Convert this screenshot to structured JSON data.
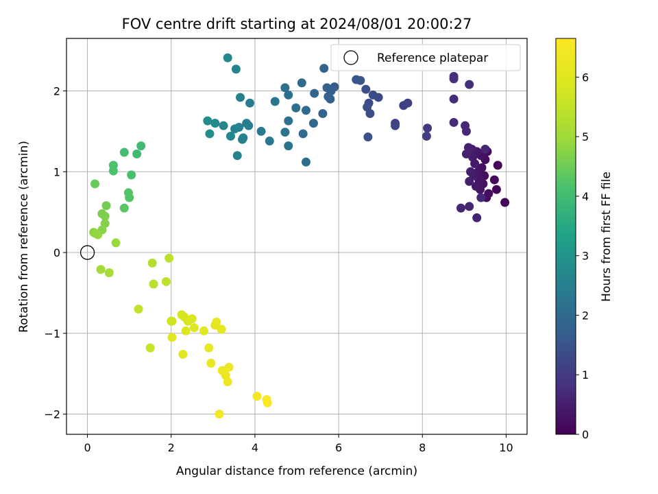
{
  "chart_data": {
    "type": "scatter",
    "title": "FOV centre drift starting at 2024/08/01 20:00:27",
    "xlabel": "Angular distance from reference (arcmin)",
    "ylabel": "Rotation from reference (arcmin)",
    "xlim": [
      -0.5,
      10.5
    ],
    "ylim": [
      -2.25,
      2.65
    ],
    "xticks": [
      0,
      2,
      4,
      6,
      8,
      10
    ],
    "yticks": [
      -2,
      -1,
      0,
      1,
      2
    ],
    "grid": true,
    "legend_position": "top-right",
    "reference": {
      "label": "Reference platepar",
      "x": 0,
      "y": 0,
      "marker": "open-circle"
    },
    "colorbar": {
      "label": "Hours from first FF file",
      "range": [
        0,
        6.65
      ],
      "ticks": [
        0,
        1,
        2,
        3,
        4,
        5,
        6
      ],
      "colormap": "viridis"
    },
    "points": [
      {
        "x": 9.97,
        "y": 0.62,
        "c": 0.05
      },
      {
        "x": 9.8,
        "y": 1.08,
        "c": 0.1
      },
      {
        "x": 9.77,
        "y": 0.78,
        "c": 0.12
      },
      {
        "x": 9.72,
        "y": 0.9,
        "c": 0.14
      },
      {
        "x": 9.55,
        "y": 1.25,
        "c": 0.16
      },
      {
        "x": 9.58,
        "y": 0.73,
        "c": 0.18
      },
      {
        "x": 9.53,
        "y": 0.68,
        "c": 0.2
      },
      {
        "x": 9.5,
        "y": 1.15,
        "c": 0.22
      },
      {
        "x": 9.48,
        "y": 0.95,
        "c": 0.24
      },
      {
        "x": 9.45,
        "y": 0.85,
        "c": 0.26
      },
      {
        "x": 9.42,
        "y": 1.05,
        "c": 0.28
      },
      {
        "x": 9.4,
        "y": 1.2,
        "c": 0.3
      },
      {
        "x": 9.38,
        "y": 0.78,
        "c": 0.32
      },
      {
        "x": 9.35,
        "y": 0.9,
        "c": 0.34
      },
      {
        "x": 9.33,
        "y": 1.0,
        "c": 0.36
      },
      {
        "x": 9.3,
        "y": 1.25,
        "c": 0.38
      },
      {
        "x": 9.28,
        "y": 0.82,
        "c": 0.4
      },
      {
        "x": 9.25,
        "y": 1.1,
        "c": 0.42
      },
      {
        "x": 9.22,
        "y": 0.95,
        "c": 0.44
      },
      {
        "x": 9.2,
        "y": 1.18,
        "c": 0.46
      },
      {
        "x": 9.18,
        "y": 1.28,
        "c": 0.48
      },
      {
        "x": 9.15,
        "y": 1.0,
        "c": 0.5
      },
      {
        "x": 9.12,
        "y": 0.88,
        "c": 0.52
      },
      {
        "x": 9.1,
        "y": 1.3,
        "c": 0.54
      },
      {
        "x": 9.05,
        "y": 1.22,
        "c": 0.56
      },
      {
        "x": 9.3,
        "y": 0.43,
        "c": 0.58
      },
      {
        "x": 9.12,
        "y": 0.57,
        "c": 0.6
      },
      {
        "x": 8.92,
        "y": 0.55,
        "c": 0.62
      },
      {
        "x": 9.4,
        "y": 0.68,
        "c": 0.64
      },
      {
        "x": 9.5,
        "y": 1.28,
        "c": 0.66
      },
      {
        "x": 9.05,
        "y": 1.5,
        "c": 0.68
      },
      {
        "x": 9.02,
        "y": 1.57,
        "c": 0.7
      },
      {
        "x": 8.75,
        "y": 1.61,
        "c": 0.72
      },
      {
        "x": 8.75,
        "y": 1.9,
        "c": 0.74
      },
      {
        "x": 9.12,
        "y": 2.08,
        "c": 0.76
      },
      {
        "x": 8.75,
        "y": 2.15,
        "c": 0.78
      },
      {
        "x": 8.75,
        "y": 2.18,
        "c": 0.8
      },
      {
        "x": 8.12,
        "y": 1.54,
        "c": 1.0
      },
      {
        "x": 8.1,
        "y": 1.44,
        "c": 1.02
      },
      {
        "x": 7.65,
        "y": 1.85,
        "c": 1.1
      },
      {
        "x": 7.55,
        "y": 1.82,
        "c": 1.12
      },
      {
        "x": 7.35,
        "y": 1.6,
        "c": 1.16
      },
      {
        "x": 7.35,
        "y": 1.57,
        "c": 1.18
      },
      {
        "x": 6.95,
        "y": 1.92,
        "c": 1.28
      },
      {
        "x": 6.82,
        "y": 1.95,
        "c": 1.32
      },
      {
        "x": 6.72,
        "y": 1.85,
        "c": 1.35
      },
      {
        "x": 6.75,
        "y": 1.72,
        "c": 1.38
      },
      {
        "x": 6.68,
        "y": 1.8,
        "c": 1.4
      },
      {
        "x": 6.65,
        "y": 2.02,
        "c": 1.42
      },
      {
        "x": 6.7,
        "y": 1.43,
        "c": 1.45
      },
      {
        "x": 6.52,
        "y": 2.13,
        "c": 1.52
      },
      {
        "x": 6.42,
        "y": 2.14,
        "c": 1.56
      },
      {
        "x": 5.9,
        "y": 2.05,
        "c": 1.7
      },
      {
        "x": 5.82,
        "y": 2.0,
        "c": 1.74
      },
      {
        "x": 5.8,
        "y": 1.9,
        "c": 1.76
      },
      {
        "x": 5.72,
        "y": 2.04,
        "c": 1.78
      },
      {
        "x": 5.75,
        "y": 1.93,
        "c": 1.8
      },
      {
        "x": 5.65,
        "y": 2.28,
        "c": 1.84
      },
      {
        "x": 5.62,
        "y": 1.72,
        "c": 1.86
      },
      {
        "x": 5.42,
        "y": 1.97,
        "c": 1.9
      },
      {
        "x": 5.4,
        "y": 1.6,
        "c": 1.93
      },
      {
        "x": 5.22,
        "y": 1.76,
        "c": 1.98
      },
      {
        "x": 5.12,
        "y": 2.1,
        "c": 2.02
      },
      {
        "x": 5.15,
        "y": 1.47,
        "c": 2.04
      },
      {
        "x": 5.22,
        "y": 1.12,
        "c": 2.06
      },
      {
        "x": 4.98,
        "y": 1.79,
        "c": 2.1
      },
      {
        "x": 4.8,
        "y": 1.95,
        "c": 2.14
      },
      {
        "x": 4.72,
        "y": 2.04,
        "c": 2.16
      },
      {
        "x": 4.8,
        "y": 1.63,
        "c": 2.18
      },
      {
        "x": 4.72,
        "y": 1.49,
        "c": 2.2
      },
      {
        "x": 4.8,
        "y": 1.32,
        "c": 2.22
      },
      {
        "x": 4.48,
        "y": 1.87,
        "c": 2.26
      },
      {
        "x": 4.35,
        "y": 1.38,
        "c": 2.3
      },
      {
        "x": 4.15,
        "y": 1.5,
        "c": 2.34
      },
      {
        "x": 3.88,
        "y": 1.85,
        "c": 2.42
      },
      {
        "x": 3.85,
        "y": 1.57,
        "c": 2.44
      },
      {
        "x": 3.8,
        "y": 1.6,
        "c": 2.46
      },
      {
        "x": 3.72,
        "y": 1.42,
        "c": 2.48
      },
      {
        "x": 3.7,
        "y": 1.4,
        "c": 2.5
      },
      {
        "x": 3.65,
        "y": 1.92,
        "c": 2.52
      },
      {
        "x": 3.62,
        "y": 1.55,
        "c": 2.54
      },
      {
        "x": 3.55,
        "y": 2.27,
        "c": 2.56
      },
      {
        "x": 3.58,
        "y": 1.2,
        "c": 2.58
      },
      {
        "x": 3.52,
        "y": 1.53,
        "c": 2.6
      },
      {
        "x": 3.42,
        "y": 1.44,
        "c": 2.64
      },
      {
        "x": 3.35,
        "y": 2.41,
        "c": 2.66
      },
      {
        "x": 3.25,
        "y": 1.57,
        "c": 2.7
      },
      {
        "x": 3.05,
        "y": 1.6,
        "c": 2.76
      },
      {
        "x": 2.92,
        "y": 1.47,
        "c": 2.8
      },
      {
        "x": 2.87,
        "y": 1.63,
        "c": 2.82
      },
      {
        "x": 1.28,
        "y": 1.32,
        "c": 3.95
      },
      {
        "x": 1.18,
        "y": 1.22,
        "c": 4.0
      },
      {
        "x": 0.88,
        "y": 1.24,
        "c": 4.05
      },
      {
        "x": 1.05,
        "y": 0.96,
        "c": 4.1
      },
      {
        "x": 0.62,
        "y": 1.08,
        "c": 4.15
      },
      {
        "x": 0.62,
        "y": 1.01,
        "c": 4.18
      },
      {
        "x": 0.98,
        "y": 0.74,
        "c": 4.22
      },
      {
        "x": 1.0,
        "y": 0.68,
        "c": 4.25
      },
      {
        "x": 0.88,
        "y": 0.55,
        "c": 4.3
      },
      {
        "x": 0.18,
        "y": 0.85,
        "c": 4.45
      },
      {
        "x": 0.45,
        "y": 0.58,
        "c": 4.55
      },
      {
        "x": 0.35,
        "y": 0.48,
        "c": 4.62
      },
      {
        "x": 0.42,
        "y": 0.45,
        "c": 4.65
      },
      {
        "x": 0.42,
        "y": 0.36,
        "c": 4.7
      },
      {
        "x": 0.35,
        "y": 0.28,
        "c": 4.75
      },
      {
        "x": 0.15,
        "y": 0.25,
        "c": 4.8
      },
      {
        "x": 0.18,
        "y": 0.24,
        "c": 4.82
      },
      {
        "x": 0.25,
        "y": 0.22,
        "c": 4.85
      },
      {
        "x": 0.68,
        "y": 0.12,
        "c": 4.95
      },
      {
        "x": 0.32,
        "y": -0.21,
        "c": 5.05
      },
      {
        "x": 0.52,
        "y": -0.25,
        "c": 5.1
      },
      {
        "x": 1.55,
        "y": -0.13,
        "c": 5.3
      },
      {
        "x": 1.58,
        "y": -0.39,
        "c": 5.35
      },
      {
        "x": 1.95,
        "y": -0.07,
        "c": 5.4
      },
      {
        "x": 1.88,
        "y": -0.36,
        "c": 5.45
      },
      {
        "x": 1.22,
        "y": -0.7,
        "c": 5.5
      },
      {
        "x": 1.5,
        "y": -1.18,
        "c": 5.55
      },
      {
        "x": 2.0,
        "y": -0.85,
        "c": 5.7
      },
      {
        "x": 2.02,
        "y": -0.85,
        "c": 5.72
      },
      {
        "x": 2.25,
        "y": -0.77,
        "c": 5.8
      },
      {
        "x": 2.32,
        "y": -0.8,
        "c": 5.84
      },
      {
        "x": 2.4,
        "y": -0.85,
        "c": 5.88
      },
      {
        "x": 2.5,
        "y": -0.82,
        "c": 5.92
      },
      {
        "x": 2.55,
        "y": -0.93,
        "c": 5.94
      },
      {
        "x": 2.35,
        "y": -0.97,
        "c": 5.96
      },
      {
        "x": 2.02,
        "y": -1.05,
        "c": 5.98
      },
      {
        "x": 2.28,
        "y": -1.26,
        "c": 6.0
      },
      {
        "x": 2.78,
        "y": -0.97,
        "c": 6.05
      },
      {
        "x": 3.05,
        "y": -0.9,
        "c": 6.1
      },
      {
        "x": 3.08,
        "y": -0.86,
        "c": 6.12
      },
      {
        "x": 3.2,
        "y": -0.95,
        "c": 6.15
      },
      {
        "x": 2.9,
        "y": -1.18,
        "c": 6.18
      },
      {
        "x": 2.95,
        "y": -1.37,
        "c": 6.22
      },
      {
        "x": 3.22,
        "y": -1.46,
        "c": 6.26
      },
      {
        "x": 3.3,
        "y": -1.52,
        "c": 6.3
      },
      {
        "x": 3.38,
        "y": -1.42,
        "c": 6.32
      },
      {
        "x": 3.35,
        "y": -1.6,
        "c": 6.35
      },
      {
        "x": 3.15,
        "y": -2.0,
        "c": 6.4
      },
      {
        "x": 4.05,
        "y": -1.78,
        "c": 6.5
      },
      {
        "x": 4.28,
        "y": -1.82,
        "c": 6.55
      },
      {
        "x": 4.3,
        "y": -1.86,
        "c": 6.6
      }
    ]
  }
}
